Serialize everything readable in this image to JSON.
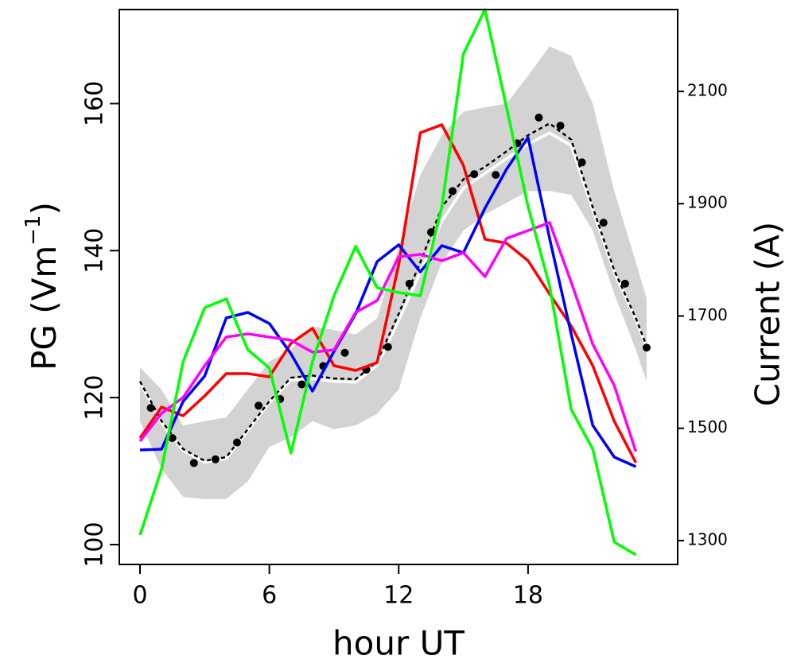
{
  "chart_data": {
    "type": "line",
    "xlabel": "hour UT",
    "ylabel": [
      "PG (Vm",
      "−1",
      ")"
    ],
    "y2label": "Current (A)",
    "xlim": [
      -0.96,
      24.94
    ],
    "ylim": [
      97.3,
      172.8
    ],
    "y2lim": [
      1257.5,
      2245.8
    ],
    "xticks": [
      0,
      6,
      12,
      18
    ],
    "yticks": [
      100,
      120,
      140,
      160
    ],
    "y2ticks": [
      1300,
      1500,
      1700,
      1900,
      2100
    ],
    "band": {
      "color": "#d3d3d3",
      "x": [
        0,
        1,
        2,
        3,
        4,
        5,
        6,
        7,
        8,
        9,
        10,
        11,
        12,
        13,
        14,
        15,
        16,
        17,
        18,
        19,
        20,
        21,
        22,
        23,
        23.5
      ],
      "upper": [
        124.1,
        121.1,
        116.2,
        116.8,
        117.3,
        121.1,
        124.9,
        126.5,
        129.7,
        129.2,
        128.6,
        130.8,
        140.5,
        150.3,
        155.7,
        158.9,
        159.5,
        160,
        163.8,
        167.8,
        166.5,
        160,
        148.1,
        138.4,
        133.5
      ],
      "lower": [
        116.8,
        110.3,
        106.5,
        106.2,
        106.2,
        108.6,
        113.3,
        114.6,
        116.8,
        115.7,
        116.2,
        117.8,
        121.1,
        130.8,
        138.4,
        142.7,
        144.9,
        146.5,
        148.1,
        148.1,
        147.6,
        142.7,
        134.1,
        126.5,
        122.2
      ]
    },
    "series": [
      {
        "style": "line",
        "color": "#ffffff",
        "axis": "y",
        "x": [
          0,
          1,
          2,
          3,
          4,
          5,
          6,
          7,
          8,
          9,
          10,
          11,
          12,
          13,
          14,
          15,
          16,
          17,
          18,
          19,
          20,
          21,
          22,
          23,
          23.5
        ],
        "values": [
          122,
          116.6,
          112.8,
          111.2,
          111.7,
          115.5,
          119.3,
          122.4,
          122.6,
          122.2,
          122.1,
          124.4,
          130.5,
          137,
          144,
          148.5,
          150.5,
          152.5,
          154.5,
          156,
          154.3,
          145.5,
          137,
          130.6,
          126.8
        ]
      },
      {
        "style": "dashed",
        "color": "#000000",
        "axis": "y",
        "x": [
          0,
          1,
          2,
          3,
          4,
          5,
          6,
          7,
          8,
          9,
          10,
          11,
          12,
          13,
          14,
          15,
          16,
          17,
          18,
          19,
          20,
          21,
          22,
          23,
          23.5
        ],
        "values": [
          122.2,
          116.8,
          113,
          111.4,
          111.9,
          115.7,
          119.5,
          122.7,
          123,
          122.6,
          122.5,
          124.9,
          131.4,
          138.4,
          145.9,
          149.7,
          151.4,
          153.5,
          155.7,
          157.3,
          155.1,
          145.9,
          137.3,
          130.8,
          127
        ]
      },
      {
        "style": "points",
        "color": "#000000",
        "axis": "y",
        "x": [
          0.5,
          1.5,
          2.5,
          3.5,
          4.5,
          5.5,
          6.5,
          7.5,
          8.5,
          9.5,
          10.5,
          11.5,
          12.5,
          13.5,
          14.5,
          15.5,
          16.5,
          17.5,
          18.5,
          19.5,
          20.5,
          21.5,
          22.5,
          23.5
        ],
        "values": [
          118.6,
          114.5,
          111.1,
          111.6,
          113.9,
          118.9,
          119.8,
          121.8,
          124.3,
          126.1,
          123.8,
          126.9,
          135.5,
          142.5,
          148.1,
          150.4,
          150.3,
          154.6,
          158.1,
          157,
          152,
          143.8,
          135.5,
          126.8
        ]
      },
      {
        "style": "line",
        "color": "#ff0000",
        "axis": "y2",
        "x": [
          0,
          1,
          2,
          3,
          4,
          5,
          6,
          7,
          8,
          9,
          10,
          11,
          12,
          13,
          14,
          15,
          16,
          17,
          18,
          19,
          20,
          21,
          22,
          23
        ],
        "values": [
          1482.7,
          1537.9,
          1522.3,
          1557.7,
          1597.4,
          1597.4,
          1591.7,
          1651.2,
          1678.1,
          1611.5,
          1603,
          1617.2,
          1791.4,
          2026.4,
          2040.6,
          1968.4,
          1836.7,
          1829.6,
          1798.4,
          1739,
          1682.3,
          1611.5,
          1512.4,
          1438.8
        ]
      },
      {
        "style": "line",
        "color": "#0000ff",
        "axis": "y2",
        "x": [
          0,
          1,
          2,
          3,
          4,
          5,
          6,
          7,
          8,
          9,
          10,
          11,
          12,
          13,
          14,
          15,
          16,
          17,
          18,
          19,
          20,
          21,
          22,
          23
        ],
        "values": [
          1461.4,
          1462.8,
          1547.8,
          1593.1,
          1696.5,
          1706.4,
          1686.6,
          1632.8,
          1566.2,
          1637,
          1703.6,
          1797,
          1826.8,
          1778.6,
          1825.3,
          1812.6,
          1891.9,
          1961.3,
          2017.9,
          1838.1,
          1668.2,
          1505.3,
          1448.7,
          1431.7
        ]
      },
      {
        "style": "line",
        "color": "#ff00ff",
        "axis": "y2",
        "x": [
          0,
          1,
          2,
          3,
          4,
          5,
          6,
          7,
          8,
          9,
          10,
          11,
          12,
          13,
          14,
          15,
          16,
          17,
          18,
          19,
          20,
          21,
          22,
          23
        ],
        "values": [
          1477,
          1526.6,
          1554.9,
          1611.5,
          1662.5,
          1668.2,
          1662.5,
          1656.8,
          1635.6,
          1639.8,
          1706.4,
          1727.6,
          1805.5,
          1809.8,
          1798.4,
          1812.6,
          1770.1,
          1838.1,
          1852.2,
          1866.4,
          1760.2,
          1649.8,
          1576.1,
          1458.6
        ]
      },
      {
        "style": "line",
        "color": "#00ff00",
        "axis": "y2",
        "x": [
          0,
          1,
          2,
          3,
          4,
          5,
          6,
          7,
          8,
          9,
          10,
          11,
          12,
          13,
          14,
          15,
          16,
          17,
          18,
          19,
          20,
          21,
          22,
          23
        ],
        "values": [
          1309.9,
          1427.4,
          1618.6,
          1714.9,
          1730.5,
          1639.8,
          1607.3,
          1455.8,
          1618.6,
          1736.1,
          1823.9,
          1750.3,
          1741.8,
          1736.1,
          1894.7,
          2166.6,
          2245.9,
          2071.7,
          1894.7,
          1753.1,
          1533.6,
          1462.8,
          1297.2,
          1274.5
        ]
      }
    ]
  }
}
